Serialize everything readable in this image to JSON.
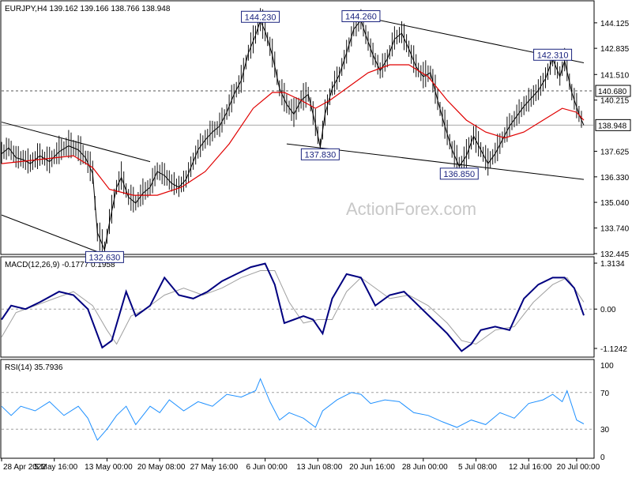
{
  "chart_data": [
    {
      "type": "line",
      "panel": "price",
      "title": "EURJPY,H4  139.162 139.166 138.766 138.948",
      "watermark": "ActionForex.com",
      "ylim": [
        132.445,
        145.2
      ],
      "y_ticks": [
        "144.125",
        "142.835",
        "141.510",
        "140.215",
        "137.625",
        "136.330",
        "135.040",
        "133.740",
        "132.445"
      ],
      "highlight_labels": [
        "140.680",
        "138.948"
      ],
      "grid": false,
      "price_points": [
        [
          0,
          137.5
        ],
        [
          3,
          137.8
        ],
        [
          6,
          137.3
        ],
        [
          9,
          137.2
        ],
        [
          12,
          137.0
        ],
        [
          16,
          137.4
        ],
        [
          20,
          137.1
        ],
        [
          24,
          137.6
        ],
        [
          28,
          137.9
        ],
        [
          32,
          137.7
        ],
        [
          35,
          137.3
        ],
        [
          38,
          136.5
        ],
        [
          40,
          133.5
        ],
        [
          43,
          132.63
        ],
        [
          45,
          134.0
        ],
        [
          48,
          135.8
        ],
        [
          50,
          136.3
        ],
        [
          53,
          135.3
        ],
        [
          56,
          135.0
        ],
        [
          59,
          135.5
        ],
        [
          62,
          135.8
        ],
        [
          65,
          136.6
        ],
        [
          68,
          136.4
        ],
        [
          71,
          136.0
        ],
        [
          74,
          135.8
        ],
        [
          77,
          136.2
        ],
        [
          79,
          136.8
        ],
        [
          82,
          137.7
        ],
        [
          85,
          138.2
        ],
        [
          88,
          138.6
        ],
        [
          91,
          138.9
        ],
        [
          94,
          139.6
        ],
        [
          97,
          140.5
        ],
        [
          100,
          141.2
        ],
        [
          103,
          142.6
        ],
        [
          106,
          143.5
        ],
        [
          108,
          144.23
        ],
        [
          110,
          143.7
        ],
        [
          113,
          142.5
        ],
        [
          116,
          140.8
        ],
        [
          119,
          140.0
        ],
        [
          122,
          139.5
        ],
        [
          125,
          140.2
        ],
        [
          128,
          140.5
        ],
        [
          131,
          139.0
        ],
        [
          133,
          137.83
        ],
        [
          135,
          139.5
        ],
        [
          138,
          140.8
        ],
        [
          141,
          141.5
        ],
        [
          144,
          142.6
        ],
        [
          147,
          143.8
        ],
        [
          150,
          144.26
        ],
        [
          152,
          143.5
        ],
        [
          155,
          142.5
        ],
        [
          158,
          141.7
        ],
        [
          161,
          142.3
        ],
        [
          164,
          143.3
        ],
        [
          167,
          143.6
        ],
        [
          170,
          142.8
        ],
        [
          173,
          141.9
        ],
        [
          176,
          141.4
        ],
        [
          179,
          141.6
        ],
        [
          182,
          140.2
        ],
        [
          185,
          138.9
        ],
        [
          188,
          137.7
        ],
        [
          191,
          136.85
        ],
        [
          194,
          137.4
        ],
        [
          197,
          138.4
        ],
        [
          200,
          137.7
        ],
        [
          203,
          137.0
        ],
        [
          206,
          137.5
        ],
        [
          209,
          138.2
        ],
        [
          212,
          138.9
        ],
        [
          215,
          139.4
        ],
        [
          218,
          139.9
        ],
        [
          221,
          140.3
        ],
        [
          224,
          140.7
        ],
        [
          227,
          141.3
        ],
        [
          230,
          142.31
        ],
        [
          233,
          141.4
        ],
        [
          235,
          142.2
        ],
        [
          238,
          140.6
        ],
        [
          241,
          139.5
        ],
        [
          243,
          138.948
        ]
      ],
      "series": [
        {
          "name": "",
          "color": "#e00000",
          "values": [
            [
              0,
              137.0
            ],
            [
              15,
              137.2
            ],
            [
              30,
              137.4
            ],
            [
              38,
              136.8
            ],
            [
              45,
              135.7
            ],
            [
              55,
              135.4
            ],
            [
              65,
              135.4
            ],
            [
              75,
              135.8
            ],
            [
              85,
              136.6
            ],
            [
              95,
              138.0
            ],
            [
              105,
              139.8
            ],
            [
              113,
              140.6
            ],
            [
              118,
              140.6
            ],
            [
              125,
              140.2
            ],
            [
              131,
              139.8
            ],
            [
              137,
              140.2
            ],
            [
              145,
              140.9
            ],
            [
              153,
              141.6
            ],
            [
              162,
              142.0
            ],
            [
              170,
              142.0
            ],
            [
              178,
              141.4
            ],
            [
              186,
              140.2
            ],
            [
              194,
              139.2
            ],
            [
              202,
              138.6
            ],
            [
              210,
              138.3
            ],
            [
              218,
              138.6
            ],
            [
              226,
              139.2
            ],
            [
              234,
              139.8
            ],
            [
              240,
              139.6
            ],
            [
              243,
              139.2
            ]
          ]
        }
      ],
      "annotations": [
        {
          "label": "144.230",
          "x": 108,
          "y": 144.23
        },
        {
          "label": "144.260",
          "x": 150,
          "y": 144.26
        },
        {
          "label": "142.310",
          "x": 230,
          "y": 142.31
        },
        {
          "label": "137.830",
          "x": 133,
          "y": 137.83
        },
        {
          "label": "136.850",
          "x": 191,
          "y": 136.85
        },
        {
          "label": "132.630",
          "x": 43,
          "y": 132.63
        }
      ],
      "reference_lines": [
        {
          "y": 140.68,
          "style": "dashed"
        },
        {
          "y": 138.948,
          "style": "solid"
        }
      ],
      "trendlines": [
        {
          "x1": 0,
          "y1": 139.1,
          "x2": 62,
          "y2": 137.1
        },
        {
          "x1": 0,
          "y1": 134.4,
          "x2": 43,
          "y2": 132.4
        },
        {
          "x1": 152,
          "y1": 144.4,
          "x2": 243,
          "y2": 142.1
        },
        {
          "x1": 119,
          "y1": 138.0,
          "x2": 243,
          "y2": 136.2
        }
      ]
    },
    {
      "type": "line",
      "panel": "macd",
      "title": "MACD(12,26,9) -0.1777 0.1958",
      "ylim": [
        -1.35,
        1.45
      ],
      "y_ticks": [
        "1.3134",
        "0.00",
        "-1.1242"
      ],
      "series": [
        {
          "name": "",
          "color": "#000080",
          "values": [
            [
              0,
              -0.3
            ],
            [
              4,
              0.1
            ],
            [
              10,
              0.0
            ],
            [
              16,
              0.2
            ],
            [
              24,
              0.5
            ],
            [
              30,
              0.4
            ],
            [
              36,
              0.0
            ],
            [
              42,
              -1.1
            ],
            [
              46,
              -0.9
            ],
            [
              52,
              0.5
            ],
            [
              56,
              -0.2
            ],
            [
              62,
              0.1
            ],
            [
              68,
              0.9
            ],
            [
              74,
              0.4
            ],
            [
              80,
              0.3
            ],
            [
              86,
              0.5
            ],
            [
              92,
              0.8
            ],
            [
              98,
              1.0
            ],
            [
              104,
              1.2
            ],
            [
              110,
              1.3
            ],
            [
              114,
              0.7
            ],
            [
              118,
              -0.4
            ],
            [
              122,
              -0.3
            ],
            [
              126,
              -0.2
            ],
            [
              130,
              -0.3
            ],
            [
              134,
              -0.7
            ],
            [
              138,
              0.3
            ],
            [
              144,
              1.0
            ],
            [
              150,
              0.9
            ],
            [
              156,
              0.1
            ],
            [
              162,
              0.4
            ],
            [
              168,
              0.5
            ],
            [
              174,
              0.1
            ],
            [
              180,
              -0.3
            ],
            [
              186,
              -0.7
            ],
            [
              192,
              -1.2
            ],
            [
              196,
              -1.0
            ],
            [
              200,
              -0.6
            ],
            [
              206,
              -0.5
            ],
            [
              212,
              -0.6
            ],
            [
              218,
              0.3
            ],
            [
              224,
              0.7
            ],
            [
              230,
              0.9
            ],
            [
              235,
              0.9
            ],
            [
              239,
              0.6
            ],
            [
              243,
              -0.18
            ]
          ]
        },
        {
          "name": "",
          "color": "#a0a0a0",
          "values": [
            [
              0,
              -0.8
            ],
            [
              6,
              -0.1
            ],
            [
              14,
              0.1
            ],
            [
              22,
              0.3
            ],
            [
              30,
              0.5
            ],
            [
              38,
              0.1
            ],
            [
              44,
              -0.6
            ],
            [
              48,
              -1.0
            ],
            [
              54,
              -0.2
            ],
            [
              60,
              0.0
            ],
            [
              68,
              0.4
            ],
            [
              76,
              0.6
            ],
            [
              84,
              0.4
            ],
            [
              92,
              0.6
            ],
            [
              100,
              0.9
            ],
            [
              108,
              1.1
            ],
            [
              114,
              1.1
            ],
            [
              120,
              0.2
            ],
            [
              126,
              -0.4
            ],
            [
              132,
              -0.3
            ],
            [
              138,
              -0.3
            ],
            [
              144,
              0.5
            ],
            [
              150,
              0.9
            ],
            [
              156,
              0.6
            ],
            [
              162,
              0.3
            ],
            [
              170,
              0.4
            ],
            [
              178,
              0.1
            ],
            [
              186,
              -0.4
            ],
            [
              192,
              -0.9
            ],
            [
              198,
              -1.0
            ],
            [
              206,
              -0.6
            ],
            [
              214,
              -0.5
            ],
            [
              222,
              0.2
            ],
            [
              230,
              0.7
            ],
            [
              236,
              0.9
            ],
            [
              243,
              0.2
            ]
          ]
        }
      ]
    },
    {
      "type": "line",
      "panel": "rsi",
      "title": "RSI(14) 35.7936",
      "ylim": [
        0,
        100
      ],
      "y_ticks": [
        "100",
        "70",
        "30",
        "0"
      ],
      "levels": [
        70,
        30
      ],
      "series": [
        {
          "name": "",
          "color": "#1e90ff",
          "values": [
            [
              0,
              55
            ],
            [
              4,
              45
            ],
            [
              8,
              55
            ],
            [
              14,
              50
            ],
            [
              20,
              60
            ],
            [
              26,
              45
            ],
            [
              32,
              55
            ],
            [
              36,
              42
            ],
            [
              40,
              18
            ],
            [
              44,
              30
            ],
            [
              48,
              45
            ],
            [
              52,
              55
            ],
            [
              56,
              35
            ],
            [
              62,
              55
            ],
            [
              66,
              48
            ],
            [
              70,
              62
            ],
            [
              76,
              50
            ],
            [
              82,
              60
            ],
            [
              88,
              55
            ],
            [
              94,
              68
            ],
            [
              100,
              65
            ],
            [
              106,
              72
            ],
            [
              108,
              85
            ],
            [
              112,
              60
            ],
            [
              116,
              40
            ],
            [
              120,
              48
            ],
            [
              126,
              42
            ],
            [
              131,
              32
            ],
            [
              134,
              50
            ],
            [
              140,
              62
            ],
            [
              146,
              70
            ],
            [
              150,
              68
            ],
            [
              154,
              58
            ],
            [
              160,
              62
            ],
            [
              166,
              60
            ],
            [
              172,
              48
            ],
            [
              178,
              45
            ],
            [
              184,
              38
            ],
            [
              190,
              32
            ],
            [
              196,
              40
            ],
            [
              202,
              35
            ],
            [
              208,
              48
            ],
            [
              214,
              42
            ],
            [
              220,
              58
            ],
            [
              226,
              62
            ],
            [
              230,
              68
            ],
            [
              234,
              60
            ],
            [
              236,
              72
            ],
            [
              240,
              40
            ],
            [
              243,
              35.79
            ]
          ]
        }
      ]
    }
  ],
  "x_tick_labels": [
    "28 Apr 2022",
    "5 May 16:00",
    "13 May 00:00",
    "20 May 08:00",
    "27 May 16:00",
    "6 Jun 00:00",
    "13 Jun 08:00",
    "20 Jun 16:00",
    "28 Jun 00:00",
    "5 Jul 08:00",
    "12 Jul 16:00",
    "20 Jul 00:00"
  ],
  "x_tick_positions": [
    0,
    22,
    44,
    66,
    88,
    110,
    132,
    154,
    176,
    198,
    220,
    240
  ],
  "x_max": 243,
  "colors": {
    "price": "#000000",
    "axis": "#000000",
    "level_line": "#a0a0a0",
    "annotation": "#1a237e"
  }
}
